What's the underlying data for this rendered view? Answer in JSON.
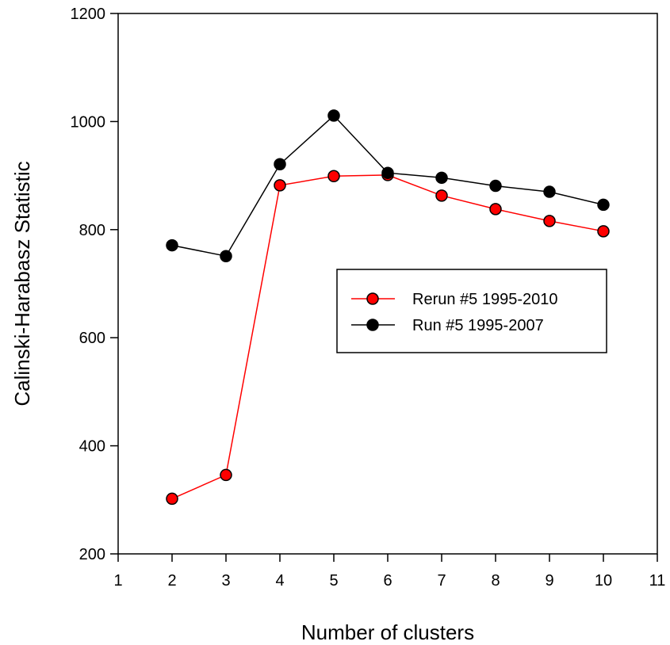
{
  "chart_data": {
    "type": "line",
    "title": "",
    "xlabel": "Number of clusters",
    "ylabel": "Calinski-Harabasz Statistic",
    "xlim": [
      1,
      11
    ],
    "ylim": [
      200,
      1200
    ],
    "xticks": [
      1,
      2,
      3,
      4,
      5,
      6,
      7,
      8,
      9,
      10,
      11
    ],
    "yticks": [
      200,
      400,
      600,
      800,
      1000,
      1200
    ],
    "grid": false,
    "legend_position": "center-right",
    "series": [
      {
        "name": "Rerun #5 1995-2010",
        "line_color": "#ff0000",
        "marker_color": "#ff0000",
        "x": [
          2,
          3,
          4,
          5,
          6,
          7,
          8,
          9,
          10
        ],
        "y": [
          302,
          346,
          882,
          899,
          901,
          863,
          838,
          816,
          797
        ]
      },
      {
        "name": "Run #5 1995-2007",
        "line_color": "#000000",
        "marker_color": "#000000",
        "x": [
          2,
          3,
          4,
          5,
          6,
          7,
          8,
          9,
          10
        ],
        "y": [
          771,
          751,
          921,
          1011,
          905,
          896,
          881,
          870,
          846
        ]
      }
    ]
  }
}
